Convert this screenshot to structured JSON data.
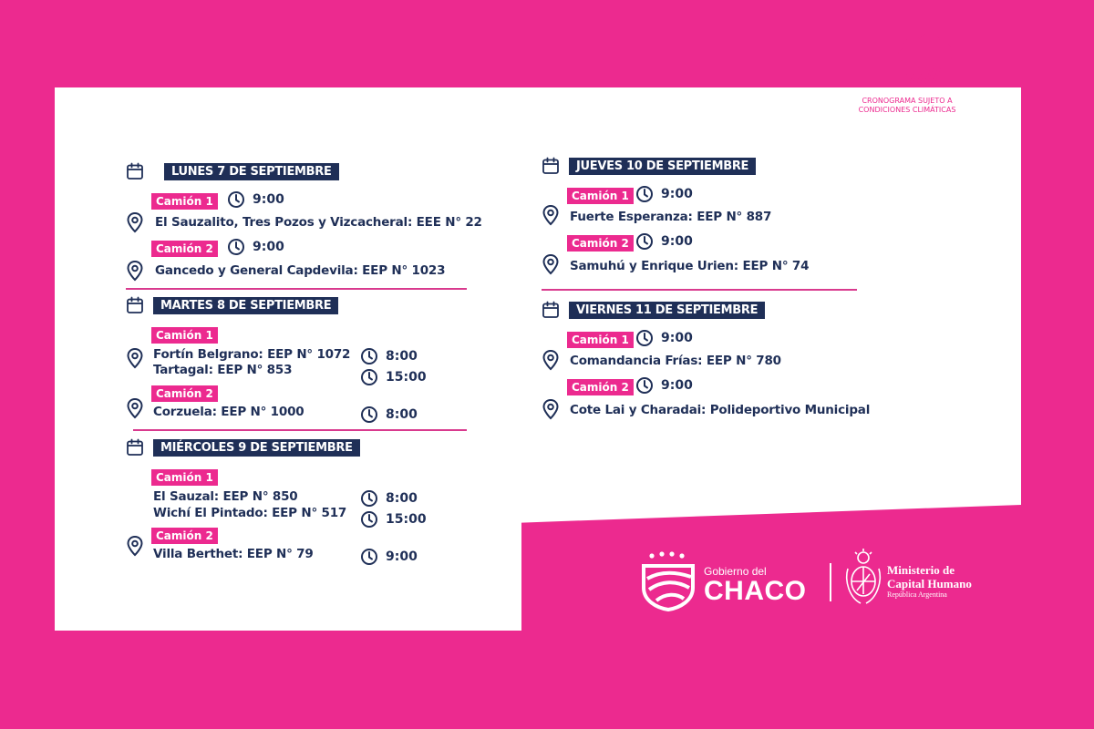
{
  "days": [
    {
      "title": "LUNES 7 DE  SEPTIEMBRE"
    },
    {
      "title": "MARTES 8 DE SEPTIEMBRE"
    },
    {
      "title": "MIÉRCOLES 9 DE SEPTIEMBRE"
    },
    {
      "title": "JUEVES 10 DE SEPTIEMBRE"
    },
    {
      "title": "VIERNES 11 DE SEPTIEMBRE"
    }
  ],
  "badges": {
    "camion1": "Camión 1",
    "camion2": "Camión 2"
  },
  "times": {
    "t900": "9:00",
    "t800": "8:00",
    "t1500": "15:00"
  },
  "locations": {
    "lun1": "El Sauzalito, Tres Pozos y Vizcacheral: EEE N° 22",
    "lun2": "Gancedo y General Capdevila: EEP N° 1023",
    "mar1a": "Fortín Belgrano: EEP N° 1072",
    "mar1b": "Tartagal: EEP N° 853",
    "mar2": "Corzuela: EEP N° 1000",
    "mie1a": "El Sauzal: EEP N° 850",
    "mie1b": "Wichí El Pintado: EEP N° 517",
    "mie2": "Villa Berthet: EEP N° 79",
    "jue1": "Fuerte Esperanza: EEP N° 887",
    "jue2": "Samuhú y Enrique Urien: EEP N° 74",
    "vie1": "Comandancia Frías: EEP N° 780",
    "vie2": "Cote Lai y Charadai: Polideportivo Municipal"
  },
  "weather": {
    "line1": "CRONOGRAMA SUJETO A",
    "line2": "CONDICIONES CLIMÁTICAS",
    "icon": "rain-cloud-icon"
  },
  "footer": {
    "gobierno": "Gobierno del",
    "chaco": "CHACO",
    "ministerio1": "Ministerio de",
    "ministerio2": "Capital Humano",
    "republica": "República Argentina"
  },
  "colors": {
    "pink": "#ec2a8f",
    "navy": "#1f2f57"
  }
}
